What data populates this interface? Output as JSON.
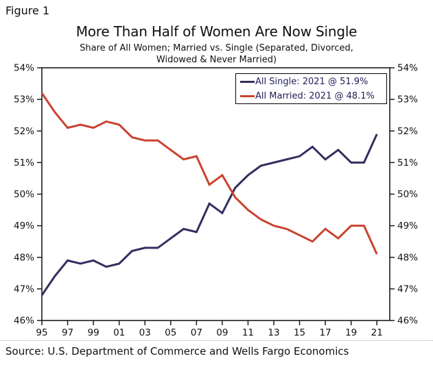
{
  "figure_label": "Figure 1",
  "title": "More Than Half of Women Are Now Single",
  "subtitle_line1": "Share of All Women; Married vs. Single (Separated, Divorced,",
  "subtitle_line2": "Widowed & Never Married)",
  "source": "Source: U.S. Department of Commerce and Wells Fargo Economics",
  "chart_data": {
    "type": "line",
    "title": "More Than Half of Women Are Now Single",
    "subtitle": "Share of All Women; Married vs. Single (Separated, Divorced, Widowed & Never Married)",
    "xlabel": "",
    "ylabel": "",
    "grid": false,
    "legend_position": "top-right",
    "xlim": [
      1995,
      2022
    ],
    "ylim": [
      46,
      54
    ],
    "x": [
      1995,
      1996,
      1997,
      1998,
      1999,
      2000,
      2001,
      2002,
      2003,
      2004,
      2005,
      2006,
      2007,
      2008,
      2009,
      2010,
      2011,
      2012,
      2013,
      2014,
      2015,
      2016,
      2017,
      2018,
      2019,
      2020,
      2021
    ],
    "series": [
      {
        "name": "All Single",
        "legend_label": "All Single: 2021 @ 51.9%",
        "color": "#332e5f",
        "values": [
          46.8,
          47.4,
          47.9,
          47.8,
          47.9,
          47.7,
          47.8,
          48.2,
          48.3,
          48.3,
          48.6,
          48.9,
          48.8,
          49.7,
          49.4,
          50.2,
          50.6,
          50.9,
          51.0,
          51.1,
          51.2,
          51.5,
          51.1,
          51.4,
          51.0,
          51.0,
          51.9
        ]
      },
      {
        "name": "All Married",
        "legend_label": "All Married: 2021 @ 48.1%",
        "color": "#c9432f",
        "values": [
          53.2,
          52.6,
          52.1,
          52.2,
          52.1,
          52.3,
          52.2,
          51.8,
          51.7,
          51.7,
          51.4,
          51.1,
          51.2,
          50.3,
          50.6,
          49.9,
          49.5,
          49.2,
          49.0,
          48.9,
          48.7,
          48.5,
          48.9,
          48.6,
          49.0,
          49.0,
          48.1
        ]
      }
    ],
    "yticks": {
      "values": [
        46,
        47,
        48,
        49,
        50,
        51,
        52,
        53,
        54
      ],
      "labels": [
        "46%",
        "47%",
        "48%",
        "49%",
        "50%",
        "51%",
        "52%",
        "53%",
        "54%"
      ]
    },
    "xticks": {
      "values": [
        1995,
        1997,
        1999,
        2001,
        2003,
        2005,
        2007,
        2009,
        2011,
        2013,
        2015,
        2017,
        2019,
        2021
      ],
      "labels": [
        "95",
        "97",
        "99",
        "01",
        "03",
        "05",
        "07",
        "09",
        "11",
        "13",
        "15",
        "17",
        "19",
        "21"
      ]
    }
  }
}
